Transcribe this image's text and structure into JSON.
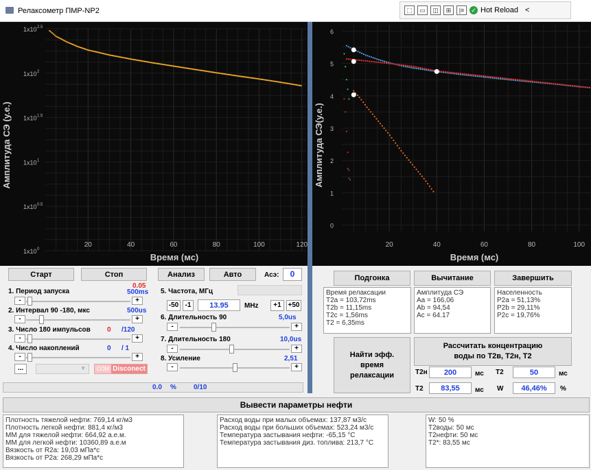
{
  "window": {
    "title": "Релаксометр ПМР-NP2",
    "devbar_label": "Hot Reload",
    "devbar_collapse": "<"
  },
  "left_chart": {
    "ylabel": "Амплитуда СЭ (у.е.)",
    "xlabel": "Время (мс)",
    "y_ticks": [
      {
        "base": "1x10",
        "exp": "2.5"
      },
      {
        "base": "1x10",
        "exp": "2"
      },
      {
        "base": "1x10",
        "exp": "1.5"
      },
      {
        "base": "1x10",
        "exp": "1"
      },
      {
        "base": "1x10",
        "exp": "0.5"
      },
      {
        "base": "1x10",
        "exp": "0"
      }
    ],
    "x_ticks": [
      "20",
      "40",
      "60",
      "80",
      "100",
      "120"
    ]
  },
  "right_chart": {
    "ylabel": "Амплитуда СЭ(у.е.)",
    "xlabel": "Время (мс)",
    "y_ticks": [
      "6",
      "5",
      "4",
      "3",
      "2",
      "1",
      "0"
    ],
    "x_ticks": [
      "20",
      "40",
      "60",
      "80",
      "100"
    ]
  },
  "chart_data": [
    {
      "type": "scatter",
      "title": "",
      "xlabel": "Время (мс)",
      "ylabel": "Амплитуда СЭ (у.е.)",
      "yscale": "log",
      "xlim": [
        0,
        122
      ],
      "ylim": [
        1,
        316.2
      ],
      "series": [
        {
          "color": "#f0a828",
          "x": [
            2,
            5,
            10,
            15,
            20,
            30,
            40,
            50,
            60,
            70,
            80,
            90,
            100,
            110,
            120
          ],
          "y": [
            300,
            260,
            225,
            200,
            182,
            160,
            144,
            131,
            120,
            110,
            101,
            93,
            86,
            79,
            72
          ]
        }
      ]
    },
    {
      "type": "scatter",
      "title": "",
      "xlabel": "Время (мс)",
      "ylabel": "Амплитуда СЭ(у.е.)",
      "xlim": [
        0,
        105
      ],
      "ylim": [
        -0.2,
        6.2
      ],
      "series": [
        {
          "color": "#4aa8e8",
          "x": [
            2,
            5,
            10,
            15,
            20,
            25,
            30,
            40,
            50,
            60,
            70,
            80,
            90,
            100,
            105
          ],
          "y": [
            5.55,
            5.43,
            5.26,
            5.13,
            5.02,
            4.93,
            4.86,
            4.75,
            4.66,
            4.58,
            4.5,
            4.43,
            4.36,
            4.28,
            4.25
          ]
        },
        {
          "color": "#e83030",
          "x": [
            2,
            5,
            10,
            15,
            20,
            30,
            40,
            60,
            80,
            100,
            105
          ],
          "y": [
            5.14,
            5.12,
            5.08,
            5.04,
            5.0,
            4.91,
            4.77,
            4.61,
            4.45,
            4.29,
            4.25
          ]
        },
        {
          "color": "#e86a20",
          "x": [
            5,
            8,
            10,
            15,
            20,
            25,
            30,
            35,
            39
          ],
          "y": [
            4.15,
            3.9,
            3.7,
            3.25,
            2.8,
            2.3,
            1.85,
            1.4,
            1.0
          ]
        },
        {
          "color": "#2ec04a",
          "x": [
            1,
            1.5,
            2,
            2.5,
            3
          ],
          "y": [
            5.3,
            4.9,
            4.5,
            4.2,
            3.9
          ]
        },
        {
          "color": "#d42020",
          "x": [
            1,
            1.5,
            2,
            2.5,
            3,
            3.5
          ],
          "y": [
            3.9,
            3.5,
            2.9,
            2.25,
            1.7,
            1.4
          ]
        },
        {
          "color": "#2f4fd8",
          "x": [
            2.5,
            3
          ],
          "y": [
            1.75,
            1.45
          ]
        }
      ],
      "markers": {
        "color": "#ffffff",
        "x": [
          5,
          5,
          5,
          40
        ],
        "y": [
          5.42,
          5.06,
          4.03,
          4.75
        ]
      }
    }
  ],
  "controls": {
    "start": "Старт",
    "stop": "Стоп",
    "analyze": "Анализ",
    "auto": "Авто",
    "acz_label": "Асэ:",
    "acz_value": "0",
    "p1": {
      "label": "1. Период запуска",
      "warn": "0.05",
      "value": "500ms",
      "minus": "-",
      "plus": "+"
    },
    "p2": {
      "label": "2. Интервал 90 -180, мкс",
      "value": "500us",
      "minus": "-",
      "plus": "+"
    },
    "p3": {
      "label": "3. Число 180 импульсов",
      "cur": "0",
      "total": "/120",
      "minus": "-",
      "plus": "+"
    },
    "p4": {
      "label": "4. Число накоплений",
      "cur": "0",
      "total": "/ 1",
      "minus": "-",
      "plus": "+"
    },
    "p5": {
      "label": "5. Частота, МГц",
      "b1": "-50",
      "b2": "-1",
      "freq": "13.95",
      "unit": "MHz",
      "b3": "+1",
      "b4": "+50"
    },
    "p6": {
      "label": "6. Длительность 90",
      "value": "5,0us",
      "minus": "-",
      "plus": "+"
    },
    "p7": {
      "label": "7. Длительность 180",
      "value": "10,0us",
      "minus": "-",
      "plus": "+"
    },
    "p8": {
      "label": "8. Усиление",
      "value": "2,51",
      "minus": "-",
      "plus": "+"
    },
    "dots": "...",
    "port_dim": "COM",
    "disconnect": "Disconect",
    "progress_pct": "0.0",
    "pct_sign": "%",
    "progress_count": "0/10",
    "progress_fraction": 0
  },
  "analysis": {
    "fit": "Подгонка",
    "subtract": "Вычитание",
    "finish": "Завершить",
    "relax_panel": [
      "Время релаксации",
      "T2a = 103,72ms",
      "T2b = 11,15ms",
      "T2c = 1,56ms",
      "T2 = 6,35ms"
    ],
    "amp_panel": [
      "Амплитуда СЭ",
      "Aa = 166,06",
      "Ab = 94,54",
      "Ac = 64.17"
    ],
    "pop_panel": [
      "Населенность",
      "P2a = 51,13%",
      "P2b = 29,11%",
      "P2c = 19,76%"
    ],
    "find_eff": "Найти эфф. время релаксации",
    "calc_conc": "Рассчитать концентрацию воды по T2в, T2н, T2",
    "t2n_label": "T2н",
    "t2n_value": "200",
    "t2n_unit": "мс",
    "t2_label": "T2",
    "t2_value": "50",
    "t2_unit": "мс",
    "t2b_label": "T2",
    "t2b_value": "83,55",
    "t2b_unit": "мс",
    "w_label": "W",
    "w_value": "46,46%",
    "w_unit": "%"
  },
  "oil": {
    "button": "Вывести параметры нефти",
    "col1": [
      "Плотность тяжелой нефти: 769,14 кг/м3",
      "Плотность легкой нефти: 881,4 кг/м3",
      "ММ для тяжелой нефти: 664,92 а.е.м.",
      "ММ для легкой нефти: 10360,89 а.е.м",
      "Вязкость от R2a: 19,03 мПа*с",
      "Вязкость от P2a: 268,29 мПа*с"
    ],
    "col2": [
      "Расход воды при малых объемах: 137,87 м3/с",
      "Расход воды при больших объемах: 523,24 м3/с",
      "Температура застывания нефти: -65,15 °C",
      "Температура застывания диз. топлива:  213,7 °C"
    ],
    "col3": [
      "W: 50 %",
      "T2воды: 50 мс",
      "T2нефти: 50 мс",
      "T2*: 83,55 мс"
    ]
  }
}
